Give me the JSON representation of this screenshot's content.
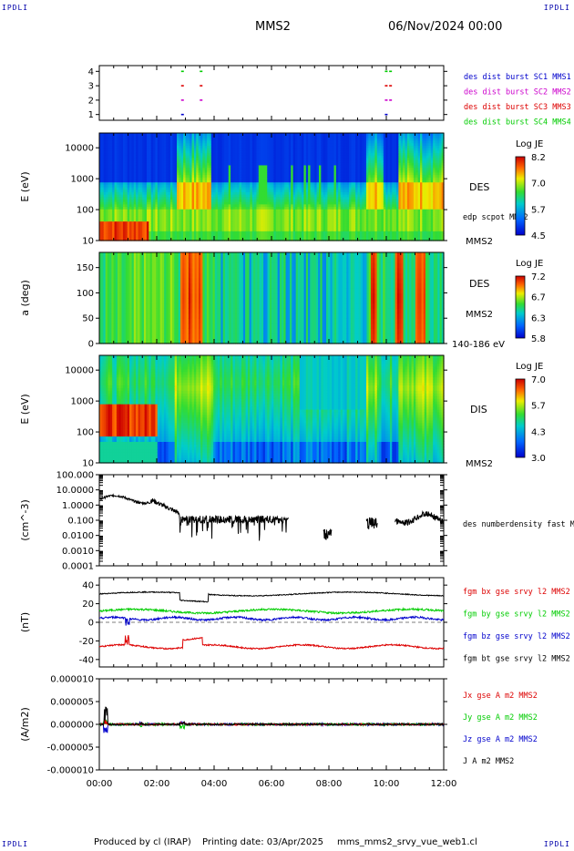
{
  "corners": {
    "tl": "IPDLI",
    "tr": "IPDLI",
    "bl": "IPDLI",
    "br": "IPDLI"
  },
  "header": {
    "spacecraft": "MMS2",
    "date": "06/Nov/2024 00:00"
  },
  "footer": {
    "produced_by": "Produced by cl (IRAP)",
    "printing_date": "Printing date: 03/Apr/2025",
    "filename": "mms_mms2_srvy_vue_web1.cl"
  },
  "colors": {
    "blue": "#0000cc",
    "magenta": "#cc00cc",
    "red": "#dd0000",
    "green": "#00cc00",
    "black": "#000000"
  },
  "chart_data": [
    {
      "type": "scatter",
      "name_id": "burst-availability",
      "ylabel": "",
      "yticks": [
        "1",
        "2",
        "3",
        "4"
      ],
      "ylim": [
        0.6,
        4.4
      ],
      "labels": [
        {
          "text": "des dist burst SC1 MMS1",
          "color": "#0000cc"
        },
        {
          "text": "des dist burst SC2 MMS2",
          "color": "#cc00cc"
        },
        {
          "text": "des dist burst SC3 MMS3",
          "color": "#dd0000"
        },
        {
          "text": "des dist burst SC4 MMS4",
          "color": "#00cc00"
        }
      ],
      "marks": [
        {
          "sc": 4,
          "t": 2.85,
          "color": "#00cc00"
        },
        {
          "sc": 4,
          "t": 3.5,
          "color": "#00cc00"
        },
        {
          "sc": 4,
          "t": 9.95,
          "color": "#00cc00"
        },
        {
          "sc": 4,
          "t": 10.1,
          "color": "#00cc00"
        },
        {
          "sc": 3,
          "t": 2.85,
          "color": "#dd0000"
        },
        {
          "sc": 3,
          "t": 3.5,
          "color": "#dd0000"
        },
        {
          "sc": 3,
          "t": 9.95,
          "color": "#dd0000"
        },
        {
          "sc": 3,
          "t": 10.1,
          "color": "#dd0000"
        },
        {
          "sc": 2,
          "t": 2.85,
          "color": "#cc00cc"
        },
        {
          "sc": 2,
          "t": 3.5,
          "color": "#cc00cc"
        },
        {
          "sc": 2,
          "t": 9.95,
          "color": "#cc00cc"
        },
        {
          "sc": 2,
          "t": 10.1,
          "color": "#cc00cc"
        },
        {
          "sc": 1,
          "t": 2.85,
          "color": "#0000cc"
        },
        {
          "sc": 1,
          "t": 9.95,
          "color": "#0000cc"
        }
      ]
    },
    {
      "type": "heatmap",
      "name_id": "des-energy-spectrogram",
      "ylabel": "E (eV)",
      "yscale": "log",
      "ylim": [
        10,
        30000
      ],
      "yticks": [
        "10",
        "100",
        "1000",
        "10000"
      ],
      "right_label": "DES",
      "right_sub": "edp scpot MMS2",
      "right_bottom": "MMS2",
      "colorbar": {
        "title": "Log JE",
        "ticks": [
          "8.2",
          "7.0",
          "5.7",
          "4.5"
        ]
      }
    },
    {
      "type": "heatmap",
      "name_id": "des-pitch-angle",
      "ylabel": "a (deg)",
      "ylim": [
        0,
        180
      ],
      "yticks": [
        "0",
        "50",
        "100",
        "150"
      ],
      "right_label": "DES",
      "right_sub": "MMS2",
      "right_bottom": "140-186 eV",
      "colorbar": {
        "title": "Log JE",
        "ticks": [
          "7.2",
          "6.7",
          "6.3",
          "5.8"
        ]
      }
    },
    {
      "type": "heatmap",
      "name_id": "dis-energy-spectrogram",
      "ylabel": "E (eV)",
      "yscale": "log",
      "ylim": [
        10,
        30000
      ],
      "yticks": [
        "10",
        "100",
        "1000",
        "10000"
      ],
      "right_label": "DIS",
      "right_bottom": "MMS2",
      "colorbar": {
        "title": "Log JE",
        "ticks": [
          "7.0",
          "5.7",
          "4.3",
          "3.0"
        ]
      }
    },
    {
      "type": "line",
      "name_id": "des-number-density",
      "ylabel": "(cm^-3)",
      "yscale": "log",
      "ylim": [
        0.0001,
        100
      ],
      "yticks": [
        "0.0001",
        "0.0010",
        "0.0100",
        "0.100",
        "1.0000",
        "10.0000",
        "100.000"
      ],
      "series": [
        {
          "name": "des numberdensity fast M",
          "color": "#000000"
        }
      ]
    },
    {
      "type": "line",
      "name_id": "fgm-magnetic-field",
      "ylabel": "(nT)",
      "ylim": [
        -48,
        48
      ],
      "yticks": [
        "-40",
        "-20",
        "0",
        "20",
        "40"
      ],
      "series": [
        {
          "name": "fgm bx gse srvy l2 MMS2",
          "color": "#dd0000"
        },
        {
          "name": "fgm by gse srvy l2 MMS2",
          "color": "#00cc00"
        },
        {
          "name": "fgm bz gse srvy l2 MMS2",
          "color": "#0000cc"
        },
        {
          "name": "fgm bt gse srvy l2 MMS2",
          "color": "#000000"
        }
      ]
    },
    {
      "type": "line",
      "name_id": "current-density",
      "ylabel": "(A/m2)",
      "ylim": [
        -1e-05,
        1e-05
      ],
      "yticks": [
        "-0.000010",
        "-0.000005",
        "0.000000",
        "0.000005",
        "0.000010"
      ],
      "series": [
        {
          "name": "Jx gse A m2 MMS2",
          "color": "#dd0000"
        },
        {
          "name": "Jy gse A m2 MMS2",
          "color": "#00cc00"
        },
        {
          "name": "Jz gse A m2 MMS2",
          "color": "#0000cc"
        },
        {
          "name": "J A m2 MMS2",
          "color": "#000000"
        }
      ]
    }
  ],
  "xaxis": {
    "ticks": [
      "00:00",
      "02:00",
      "04:00",
      "06:00",
      "08:00",
      "10:00",
      "12:00"
    ],
    "range_hours": [
      0,
      12
    ]
  }
}
